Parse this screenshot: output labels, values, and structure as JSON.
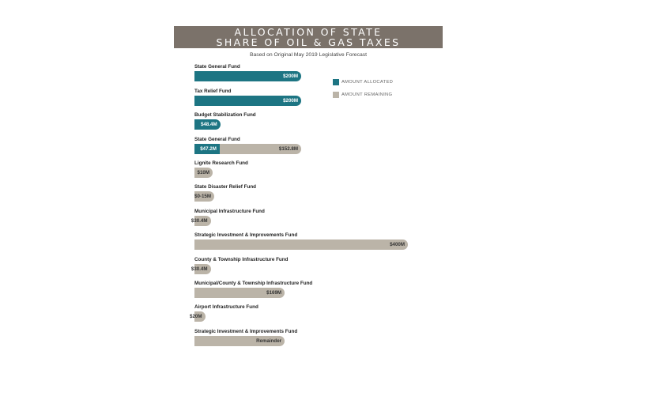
{
  "title": {
    "line1": "ALLOCATION OF STATE",
    "line2": "SHARE OF OIL & GAS TAXES"
  },
  "subtitle": "Based on Original May 2019 Legislative Forecast",
  "legend": [
    {
      "label": "AMOUNT ALLOCATED",
      "color": "#1d7583"
    },
    {
      "label": "AMOUNT REMAINING",
      "color": "#bbb4a8"
    }
  ],
  "colors": {
    "allocated": "#1d7583",
    "remaining": "#bbb4a8",
    "banner": "#7b726a",
    "text_on_allocated": "#ffffff",
    "text_on_remaining": "#333333"
  },
  "chart_data": {
    "type": "bar",
    "orientation": "horizontal",
    "stacked": true,
    "unit": "$M",
    "title": "ALLOCATION OF STATE SHARE OF OIL & GAS TAXES",
    "subtitle": "Based on Original May 2019 Legislative Forecast",
    "legend_position": "top-right",
    "grid": false,
    "categories": [
      "State General Fund",
      "Tax Relief Fund",
      "Budget Stabilization Fund",
      "State General Fund",
      "Lignite Research Fund",
      "State Disaster Relief Fund",
      "Municipal Infrastructure Fund",
      "Strategic Investment & Improvements Fund",
      "County & Township Infrastructure Fund",
      "Municipal/County & Township Infrastructure Fund",
      "Airport Infrastructure Fund",
      "Strategic Investment & Improvements Fund"
    ],
    "series": [
      {
        "name": "AMOUNT ALLOCATED",
        "values": [
          200,
          200,
          48.4,
          47.2,
          0,
          0,
          0,
          0,
          0,
          0,
          0,
          0
        ],
        "labels": [
          "$200M",
          "$200M",
          "$48.4M",
          "$47.2M",
          "",
          "",
          "",
          "",
          "",
          "",
          "",
          ""
        ]
      },
      {
        "name": "AMOUNT REMAINING",
        "values": [
          0,
          0,
          0,
          152.8,
          10,
          15,
          30.4,
          400,
          30.4,
          169,
          20,
          169
        ],
        "labels": [
          "",
          "",
          "",
          "$152.8M",
          "$10M",
          "$0-15M",
          "$30.4M",
          "$400M",
          "$30.4M",
          "$169M",
          "$20M",
          "Remainder"
        ]
      }
    ]
  }
}
